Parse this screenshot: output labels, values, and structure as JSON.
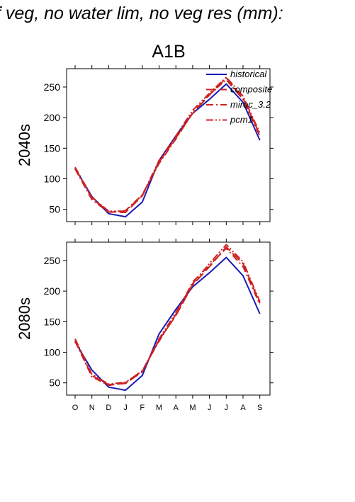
{
  "page": {
    "header": "f veg, no water lim, no veg res (mm):",
    "scenario": "A1B"
  },
  "colors": {
    "historical": "#1a1ab8",
    "projection": "#cc2222",
    "axis": "#000000"
  },
  "chart_data": [
    {
      "type": "line",
      "panel_label": "2040s",
      "categories": [
        "O",
        "N",
        "D",
        "J",
        "F",
        "M",
        "A",
        "M",
        "J",
        "J",
        "A",
        "S"
      ],
      "ylim": [
        30,
        280
      ],
      "yticks": [
        50,
        100,
        150,
        200,
        250
      ],
      "show_month_labels": false,
      "grid": false,
      "legend_placement": "top-right",
      "series": [
        {
          "name": "historical",
          "style": "solid",
          "color": "#1a1ab8",
          "values": [
            117,
            71,
            43,
            38,
            62,
            130,
            170,
            207,
            230,
            255,
            225,
            163
          ]
        },
        {
          "name": "composite",
          "style": "longdash",
          "color": "#cc2222",
          "values": [
            118,
            68,
            46,
            45,
            72,
            127,
            167,
            207,
            237,
            265,
            232,
            172
          ]
        },
        {
          "name": "miroc_3.2",
          "style": "dashdot",
          "color": "#cc2222",
          "values": [
            116,
            66,
            45,
            48,
            74,
            125,
            165,
            208,
            238,
            262,
            230,
            170
          ]
        },
        {
          "name": "pcm1",
          "style": "dashdotdot",
          "color": "#cc2222",
          "values": [
            119,
            70,
            47,
            47,
            73,
            130,
            170,
            212,
            240,
            266,
            235,
            175
          ]
        }
      ]
    },
    {
      "type": "line",
      "panel_label": "2080s",
      "categories": [
        "O",
        "N",
        "D",
        "J",
        "F",
        "M",
        "A",
        "M",
        "J",
        "J",
        "A",
        "S"
      ],
      "ylim": [
        30,
        280
      ],
      "yticks": [
        50,
        100,
        150,
        200,
        250
      ],
      "show_month_labels": true,
      "grid": false,
      "series": [
        {
          "name": "historical",
          "style": "solid",
          "color": "#1a1ab8",
          "values": [
            117,
            71,
            43,
            38,
            62,
            130,
            170,
            207,
            230,
            255,
            225,
            163
          ]
        },
        {
          "name": "composite",
          "style": "longdash",
          "color": "#cc2222",
          "values": [
            120,
            62,
            47,
            49,
            68,
            120,
            160,
            210,
            240,
            272,
            245,
            180
          ]
        },
        {
          "name": "miroc_3.2",
          "style": "dashdot",
          "color": "#cc2222",
          "values": [
            118,
            60,
            46,
            50,
            70,
            118,
            162,
            215,
            242,
            270,
            240,
            178
          ]
        },
        {
          "name": "pcm1",
          "style": "dashdotdot",
          "color": "#cc2222",
          "values": [
            122,
            64,
            48,
            51,
            69,
            122,
            165,
            212,
            245,
            276,
            248,
            183
          ]
        }
      ]
    }
  ]
}
